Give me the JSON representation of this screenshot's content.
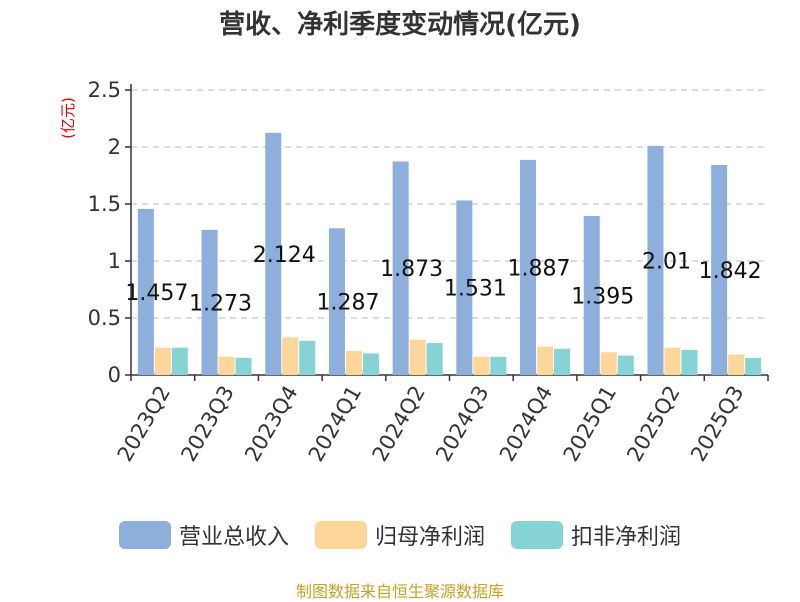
{
  "chart_data": {
    "type": "bar",
    "title": "营收、净利季度变动情况(亿元)",
    "ylabel": "(亿元)",
    "ylim": [
      0,
      2.5
    ],
    "yticks": [
      "0",
      "0.5",
      "1",
      "1.5",
      "2",
      "2.5"
    ],
    "grid": true,
    "legend_position": "bottom",
    "categories": [
      "2023Q2",
      "2023Q3",
      "2023Q4",
      "2024Q1",
      "2024Q2",
      "2024Q3",
      "2024Q4",
      "2025Q1",
      "2025Q2",
      "2025Q3"
    ],
    "series": [
      {
        "name": "营业总收入",
        "color": "#8eaedc",
        "values": [
          1.457,
          1.273,
          2.124,
          1.287,
          1.873,
          1.531,
          1.887,
          1.395,
          2.01,
          1.842
        ],
        "labels": [
          "1.457",
          "1.273",
          "2.124",
          "1.287",
          "1.873",
          "1.531",
          "1.887",
          "1.395",
          "2.01",
          "1.842"
        ]
      },
      {
        "name": "归母净利润",
        "color": "#fdd79a",
        "values": [
          0.24,
          0.16,
          0.33,
          0.21,
          0.31,
          0.16,
          0.25,
          0.2,
          0.24,
          0.18
        ]
      },
      {
        "name": "扣非净利润",
        "color": "#86d3d6",
        "values": [
          0.24,
          0.15,
          0.3,
          0.19,
          0.28,
          0.16,
          0.23,
          0.17,
          0.22,
          0.15
        ]
      }
    ]
  },
  "source": "制图数据来自恒生聚源数据库"
}
